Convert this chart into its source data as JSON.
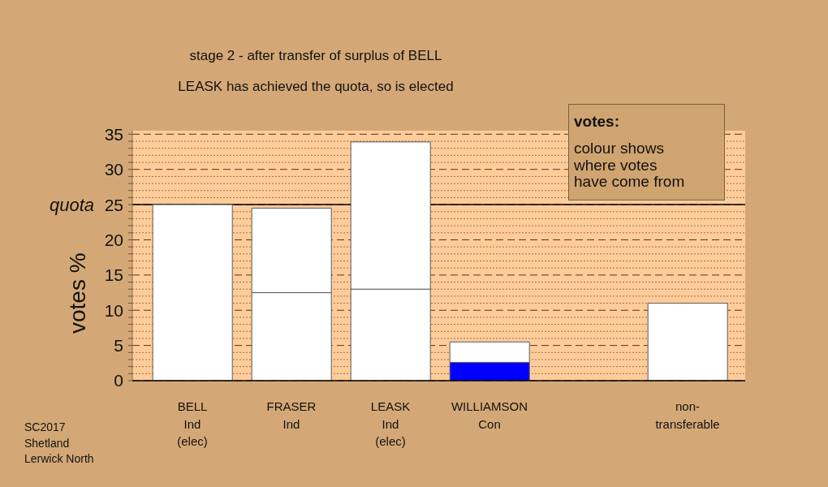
{
  "chart_data": {
    "type": "bar",
    "title": "stage 2 - after transfer of surplus of BELL",
    "subtitle": "LEASK has achieved the quota, so is elected",
    "ylabel": "votes %",
    "categories": [
      "BELL\nInd\n(elec)",
      "FRASER\nInd",
      "LEASK\nInd\n(elec)",
      "WILLIAMSON\nCon",
      null,
      "non-\ntransferable"
    ],
    "series": [
      {
        "color": "#ffffff",
        "values": [
          25.0,
          12.5,
          13.0,
          null,
          null,
          11.0
        ]
      },
      {
        "color": "#0000ff",
        "values": [
          null,
          null,
          null,
          2.6,
          null,
          null
        ]
      },
      {
        "color": "#ffffff",
        "values": [
          null,
          12.0,
          20.9,
          2.9,
          null,
          null
        ]
      }
    ],
    "stacked": true,
    "ylim": [
      0,
      35.5
    ],
    "yticks": [
      0,
      {
        "value": 1,
        "label": null
      },
      {
        "value": 2,
        "label": null
      },
      {
        "value": 3,
        "label": null
      },
      {
        "value": 4,
        "label": null
      },
      5,
      {
        "value": 6,
        "label": null
      },
      {
        "value": 7,
        "label": null
      },
      {
        "value": 8,
        "label": null
      },
      {
        "value": 9,
        "label": null
      },
      10,
      {
        "value": 11,
        "label": null
      },
      {
        "value": 12,
        "label": null
      },
      {
        "value": 13,
        "label": null
      },
      {
        "value": 14,
        "label": null
      },
      15,
      {
        "value": 16,
        "label": null
      },
      {
        "value": 17,
        "label": null
      },
      {
        "value": 18,
        "label": null
      },
      {
        "value": 19,
        "label": null
      },
      20,
      {
        "value": 21,
        "label": null
      },
      {
        "value": 22,
        "label": null
      },
      {
        "value": 23,
        "label": null
      },
      {
        "value": 24,
        "label": null
      },
      25,
      {
        "value": 26,
        "label": null
      },
      {
        "value": 27,
        "label": null
      },
      {
        "value": 28,
        "label": null
      },
      {
        "value": 29,
        "label": null
      },
      30,
      {
        "value": 31,
        "label": null
      },
      {
        "value": 32,
        "label": null
      },
      {
        "value": 33,
        "label": null
      },
      {
        "value": 34,
        "label": null
      },
      35
    ],
    "grid": "y",
    "ref_lines": [
      {
        "axis": "y",
        "value": 25,
        "label": "quota",
        "color": "#000000"
      }
    ],
    "annotations": [
      "votes:",
      "colour shows\nwhere votes\nhave come from",
      "SC2017\nShetland\nLerwick North"
    ]
  }
}
